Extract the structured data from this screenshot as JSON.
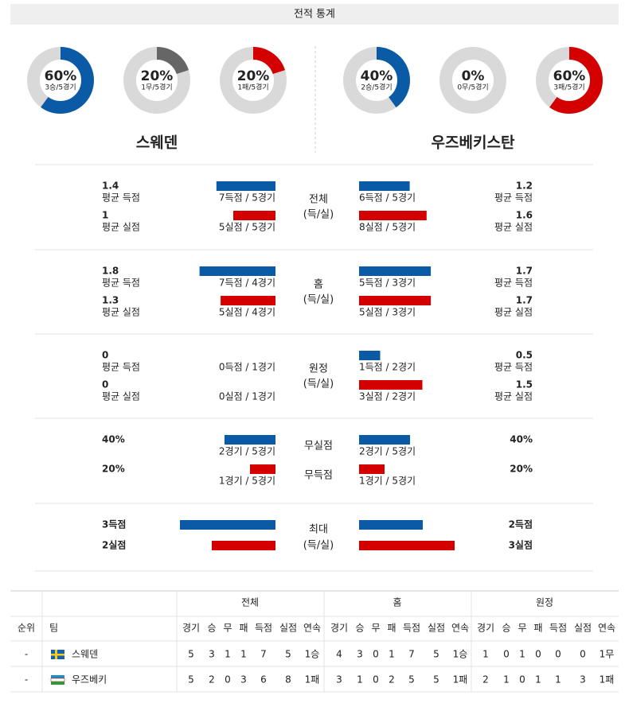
{
  "header": {
    "title": "전적 통계"
  },
  "teams": [
    {
      "name": "스웨덴",
      "donuts": [
        {
          "value": 60,
          "label": "60%",
          "sub": "3승/5경기",
          "color": "#0b5aa6"
        },
        {
          "value": 20,
          "label": "20%",
          "sub": "1무/5경기",
          "color": "#666666"
        },
        {
          "value": 20,
          "label": "20%",
          "sub": "1패/5경기",
          "color": "#d40000"
        }
      ]
    },
    {
      "name": "우즈베키스탄",
      "donuts": [
        {
          "value": 40,
          "label": "40%",
          "sub": "2승/5경기",
          "color": "#0b5aa6"
        },
        {
          "value": 0,
          "label": "0%",
          "sub": "0무/5경기",
          "color": "#666666"
        },
        {
          "value": 60,
          "label": "60%",
          "sub": "3패/5경기",
          "color": "#d40000"
        }
      ]
    }
  ],
  "sections": [
    {
      "label": [
        "전체",
        "(득/실)"
      ],
      "rows": [
        {
          "color": "#0b5aa6",
          "left": {
            "value": 1.4,
            "label": "평균 득점",
            "detail": "7득점 / 5경기"
          },
          "right": {
            "value": 1.2,
            "label": "평균 득점",
            "detail": "6득점 / 5경기"
          }
        },
        {
          "color": "#d40000",
          "left": {
            "value": 1,
            "label": "평균 실점",
            "detail": "5실점 / 5경기"
          },
          "right": {
            "value": 1.6,
            "label": "평균 실점",
            "detail": "8실점 / 5경기"
          }
        }
      ]
    },
    {
      "label": [
        "홈",
        "(득/실)"
      ],
      "rows": [
        {
          "color": "#0b5aa6",
          "left": {
            "value": 1.8,
            "label": "평균 득점",
            "detail": "7득점 / 4경기"
          },
          "right": {
            "value": 1.7,
            "label": "평균 득점",
            "detail": "5득점 / 3경기"
          }
        },
        {
          "color": "#d40000",
          "left": {
            "value": 1.3,
            "label": "평균 실점",
            "detail": "5실점 / 4경기"
          },
          "right": {
            "value": 1.7,
            "label": "평균 실점",
            "detail": "5실점 / 3경기"
          }
        }
      ]
    },
    {
      "label": [
        "원정",
        "(득/실)"
      ],
      "rows": [
        {
          "color": "#0b5aa6",
          "left": {
            "value": 0,
            "label": "평균 득점",
            "detail": "0득점 / 1경기"
          },
          "right": {
            "value": 0.5,
            "label": "평균 득점",
            "detail": "1득점 / 2경기"
          }
        },
        {
          "color": "#d40000",
          "left": {
            "value": 0,
            "label": "평균 실점",
            "detail": "0실점 / 1경기"
          },
          "right": {
            "value": 1.5,
            "label": "평균 실점",
            "detail": "3실점 / 2경기"
          }
        }
      ]
    },
    {
      "rows": [
        {
          "label": "무실점",
          "color": "#0b5aa6",
          "left": {
            "value": 40,
            "value_label": "40%",
            "detail": "2경기 / 5경기"
          },
          "right": {
            "value": 40,
            "value_label": "40%",
            "detail": "2경기 / 5경기"
          }
        },
        {
          "label": "무득점",
          "color": "#d40000",
          "left": {
            "value": 20,
            "value_label": "20%",
            "detail": "1경기 / 5경기"
          },
          "right": {
            "value": 20,
            "value_label": "20%",
            "detail": "1경기 / 5경기"
          }
        }
      ]
    },
    {
      "label": [
        "최대",
        "(득/실)"
      ],
      "rows": [
        {
          "color": "#0b5aa6",
          "left": {
            "value": 3,
            "value_label": "3득점"
          },
          "right": {
            "value": 2,
            "value_label": "2득점"
          }
        },
        {
          "color": "#d40000",
          "left": {
            "value": 2,
            "value_label": "2실점"
          },
          "right": {
            "value": 3,
            "value_label": "3실점"
          }
        }
      ]
    }
  ],
  "table": {
    "head": [
      "순위",
      "팀"
    ],
    "groups": [
      "전체",
      "홈",
      "원정"
    ],
    "columns": [
      "경기",
      "승",
      "무",
      "패",
      "득점",
      "실점",
      "연속"
    ],
    "rows": [
      {
        "rank": "-",
        "team": "스웨덴",
        "stats": [
          [
            5,
            3,
            1,
            1,
            7,
            5,
            "1승"
          ],
          [
            4,
            3,
            0,
            1,
            7,
            5,
            "1승"
          ],
          [
            1,
            0,
            1,
            0,
            0,
            0,
            "1무"
          ]
        ]
      },
      {
        "rank": "-",
        "team": "우즈베키",
        "stats": [
          [
            5,
            2,
            0,
            3,
            6,
            8,
            "1패"
          ],
          [
            3,
            1,
            0,
            2,
            5,
            5,
            "1패"
          ],
          [
            2,
            1,
            0,
            1,
            1,
            3,
            "1패"
          ]
        ]
      }
    ]
  }
}
